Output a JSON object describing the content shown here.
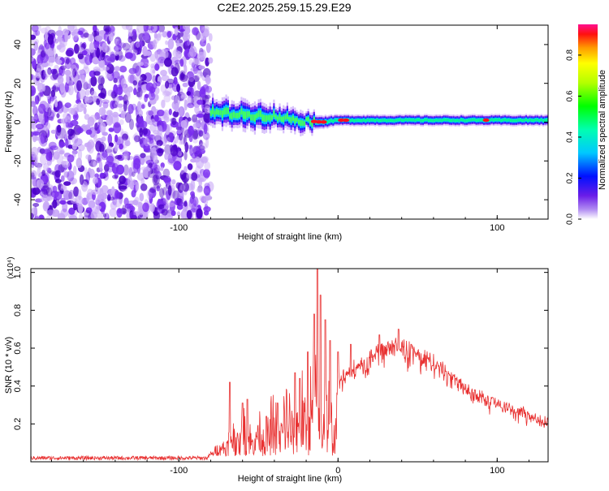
{
  "title": "C2E2.2025.259.15.29.E29",
  "colors": {
    "snr_line": "#e83030",
    "spec_dark": "#4b00c8",
    "spec_mid": "#7a2cf0",
    "spec_light": "#c7a6f7",
    "axis": "#000000"
  },
  "chart_data": [
    {
      "type": "heatmap",
      "title": "C2E2.2025.259.15.29.E29",
      "xlabel": "Height of straight line (km)",
      "ylabel": "Frequency (Hz)",
      "xlim": [
        -193,
        132
      ],
      "ylim": [
        -50,
        50
      ],
      "xticks": [
        -100,
        0,
        100
      ],
      "xtick_labels": [
        "-100",
        "",
        "100"
      ],
      "yticks": [
        -40,
        -20,
        0,
        20,
        40
      ],
      "ytick_labels": [
        "-40",
        "-20",
        "0",
        "20",
        "40"
      ],
      "noise_region_x": [
        -193,
        -80
      ],
      "signal_band": {
        "description": "narrow band near 0 Hz from about -80 km to 132 km",
        "center_hz": [
          [
            -80,
            5
          ],
          [
            -60,
            4
          ],
          [
            -40,
            3
          ],
          [
            -25,
            1
          ],
          [
            -10,
            0
          ],
          [
            0,
            1
          ],
          [
            50,
            1
          ],
          [
            100,
            1
          ],
          [
            132,
            1
          ]
        ],
        "halfwidth_hz": [
          [
            -80,
            6
          ],
          [
            -60,
            6
          ],
          [
            -40,
            5
          ],
          [
            -20,
            4
          ],
          [
            0,
            3
          ],
          [
            132,
            3
          ]
        ],
        "hot_spots_km": [
          -15,
          -12,
          -9,
          2,
          5,
          93
        ]
      },
      "colorbar": {
        "label": "Normalized spectral amplitude",
        "range": [
          0.0,
          0.95
        ],
        "ticks": [
          0.0,
          0.2,
          0.4,
          0.6,
          0.8
        ],
        "tick_labels": [
          "0.0",
          "0.2",
          "0.4",
          "0.6",
          "0.8"
        ]
      }
    },
    {
      "type": "line",
      "xlabel": "Height of straight line (km)",
      "ylabel": "SNR (10 * v/v)",
      "scale_label": "(x10⁴)",
      "xlim": [
        -193,
        132
      ],
      "ylim": [
        0,
        1.02
      ],
      "xticks": [
        -100,
        0,
        100
      ],
      "xtick_labels": [
        "-100",
        "0",
        "100"
      ],
      "yticks": [
        0.2,
        0.4,
        0.6,
        0.8,
        1.0
      ],
      "ytick_labels": [
        "0.2",
        "0.4",
        "0.6",
        "0.8",
        "1.0"
      ],
      "series": [
        {
          "name": "SNR",
          "envelope": [
            [
              -193,
              0.02
            ],
            [
              -82,
              0.02
            ],
            [
              -75,
              0.1
            ],
            [
              -70,
              0.2
            ],
            [
              -60,
              0.3
            ],
            [
              -50,
              0.3
            ],
            [
              -40,
              0.35
            ],
            [
              -30,
              0.45
            ],
            [
              -20,
              0.55
            ],
            [
              -15,
              0.6
            ],
            [
              -10,
              0.5
            ],
            [
              -5,
              0.45
            ],
            [
              0,
              0.45
            ],
            [
              10,
              0.52
            ],
            [
              20,
              0.58
            ],
            [
              30,
              0.63
            ],
            [
              40,
              0.64
            ],
            [
              50,
              0.6
            ],
            [
              60,
              0.55
            ],
            [
              70,
              0.48
            ],
            [
              80,
              0.42
            ],
            [
              90,
              0.36
            ],
            [
              100,
              0.32
            ],
            [
              110,
              0.29
            ],
            [
              120,
              0.26
            ],
            [
              132,
              0.22
            ]
          ],
          "peaks": [
            [
              -68,
              0.42
            ],
            [
              -60,
              0.31
            ],
            [
              -57,
              0.33
            ],
            [
              -45,
              0.24
            ],
            [
              -38,
              0.31
            ],
            [
              -27,
              0.47
            ],
            [
              -24,
              0.44
            ],
            [
              -19,
              0.58
            ],
            [
              -15,
              0.78
            ],
            [
              -13,
              1.02
            ],
            [
              -11,
              0.88
            ],
            [
              -8,
              0.75
            ],
            [
              -5,
              0.64
            ],
            [
              0,
              0.58
            ],
            [
              8,
              0.62
            ],
            [
              26,
              0.67
            ],
            [
              38,
              0.7
            ],
            [
              46,
              0.62
            ],
            [
              61,
              0.49
            ],
            [
              74,
              0.44
            ],
            [
              86,
              0.38
            ],
            [
              97,
              0.34
            ]
          ]
        }
      ]
    }
  ]
}
